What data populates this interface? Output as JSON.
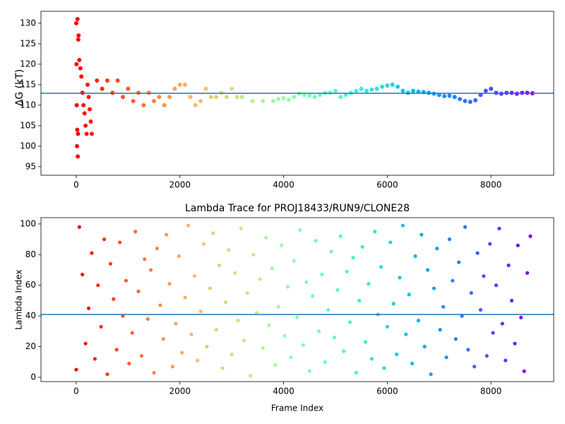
{
  "chart_data": [
    {
      "type": "scatter",
      "ylabel": "ΔG (kT)",
      "colormap": "rainbow",
      "colormap_reversed": true,
      "xlim": [
        -680,
        9210
      ],
      "ylim": [
        92.9,
        132.9
      ],
      "xticks": [
        0,
        2000,
        4000,
        6000,
        8000
      ],
      "yticks": [
        95,
        100,
        105,
        110,
        115,
        120,
        125,
        130
      ],
      "hline": 112.9,
      "hline_color": "#1f77b4",
      "x": [
        0,
        5,
        10,
        15,
        20,
        25,
        30,
        35,
        40,
        45,
        60,
        80,
        100,
        120,
        140,
        160,
        180,
        200,
        220,
        240,
        260,
        280,
        300,
        400,
        500,
        600,
        700,
        800,
        900,
        1000,
        1100,
        1200,
        1300,
        1400,
        1500,
        1600,
        1700,
        1800,
        1900,
        2000,
        2100,
        2200,
        2300,
        2400,
        2500,
        2600,
        2700,
        2800,
        2900,
        3000,
        3100,
        3200,
        3400,
        3600,
        3800,
        3900,
        4000,
        4100,
        4200,
        4300,
        4400,
        4500,
        4600,
        4700,
        4800,
        4900,
        5000,
        5100,
        5200,
        5300,
        5400,
        5500,
        5600,
        5700,
        5800,
        5900,
        6000,
        6100,
        6200,
        6300,
        6400,
        6500,
        6600,
        6700,
        6800,
        6900,
        7000,
        7100,
        7200,
        7300,
        7400,
        7500,
        7600,
        7700,
        7800,
        7900,
        8000,
        8100,
        8200,
        8300,
        8400,
        8500,
        8600,
        8700,
        8800
      ],
      "values": [
        130,
        120,
        110,
        100,
        104,
        131,
        97.5,
        103,
        126,
        127,
        121,
        119,
        117,
        113,
        110,
        108,
        105,
        103,
        115,
        112,
        109,
        106,
        103,
        116,
        114,
        116,
        113,
        116,
        112,
        114,
        111,
        113,
        110,
        113,
        111,
        112,
        110,
        112,
        114,
        115,
        115,
        112,
        110,
        111,
        114,
        112,
        112,
        113,
        112,
        114,
        112,
        112,
        111,
        111,
        111,
        111.5,
        111.7,
        111.3,
        112,
        112.8,
        112.5,
        112.3,
        112,
        112.5,
        113,
        113,
        113.5,
        112,
        112.5,
        113,
        113.5,
        114,
        113.5,
        113.8,
        114,
        114.5,
        114.8,
        115,
        114.5,
        113.5,
        113,
        113.5,
        113.3,
        113.2,
        113,
        112.8,
        112.5,
        112.2,
        112.3,
        112,
        111.5,
        111,
        110.8,
        111.2,
        112.5,
        113.5,
        114,
        113,
        112.8,
        113,
        113,
        112.8,
        113,
        113,
        112.9
      ]
    },
    {
      "type": "scatter",
      "title": "Lambda Trace for PROJ18433/RUN9/CLONE28",
      "xlabel": "Frame Index",
      "ylabel": "Lambda Index",
      "colormap": "rainbow",
      "colormap_reversed": true,
      "xlim": [
        -680,
        9210
      ],
      "ylim": [
        -2.8,
        104.1
      ],
      "xticks": [
        0,
        2000,
        4000,
        6000,
        8000
      ],
      "yticks": [
        0,
        20,
        40,
        60,
        80,
        100
      ],
      "hline": 41,
      "hline_color": "#1f77b4",
      "x": [
        0,
        60,
        120,
        180,
        240,
        300,
        360,
        420,
        480,
        540,
        600,
        660,
        720,
        780,
        840,
        900,
        960,
        1020,
        1080,
        1140,
        1200,
        1260,
        1320,
        1380,
        1440,
        1500,
        1560,
        1620,
        1680,
        1740,
        1800,
        1860,
        1920,
        1980,
        2040,
        2100,
        2160,
        2220,
        2280,
        2340,
        2400,
        2460,
        2520,
        2580,
        2640,
        2700,
        2760,
        2820,
        2880,
        2940,
        3000,
        3060,
        3120,
        3180,
        3240,
        3300,
        3360,
        3420,
        3480,
        3540,
        3600,
        3660,
        3720,
        3780,
        3840,
        3900,
        3960,
        4020,
        4080,
        4140,
        4200,
        4260,
        4320,
        4380,
        4440,
        4500,
        4560,
        4620,
        4680,
        4740,
        4800,
        4860,
        4920,
        4980,
        5040,
        5100,
        5160,
        5220,
        5280,
        5340,
        5400,
        5460,
        5520,
        5580,
        5640,
        5700,
        5760,
        5820,
        5880,
        5940,
        6000,
        6060,
        6120,
        6180,
        6240,
        6300,
        6360,
        6420,
        6480,
        6540,
        6600,
        6660,
        6720,
        6780,
        6840,
        6900,
        6960,
        7020,
        7080,
        7140,
        7200,
        7260,
        7320,
        7380,
        7440,
        7500,
        7560,
        7620,
        7680,
        7740,
        7800,
        7860,
        7920,
        7980,
        8040,
        8100,
        8160,
        8220,
        8280,
        8340,
        8400,
        8460,
        8520,
        8580,
        8640,
        8700,
        8760
      ],
      "values": [
        5,
        98,
        67,
        22,
        45,
        81,
        12,
        60,
        33,
        90,
        2,
        74,
        51,
        18,
        88,
        40,
        63,
        9,
        29,
        95,
        56,
        14,
        77,
        38,
        70,
        3,
        84,
        47,
        25,
        93,
        61,
        7,
        35,
        79,
        16,
        52,
        99,
        28,
        66,
        11,
        43,
        87,
        20,
        58,
        94,
        31,
        73,
        6,
        49,
        83,
        15,
        68,
        37,
        97,
        24,
        55,
        1,
        80,
        42,
        64,
        19,
        91,
        34,
        71,
        8,
        46,
        86,
        27,
        59,
        13,
        76,
        39,
        96,
        21,
        62,
        4,
        53,
        89,
        30,
        67,
        10,
        44,
        82,
        26,
        57,
        92,
        17,
        69,
        36,
        78,
        3,
        50,
        85,
        23,
        61,
        12,
        95,
        41,
        72,
        6,
        33,
        88,
        48,
        15,
        65,
        99,
        28,
        54,
        9,
        79,
        37,
        93,
        20,
        70,
        2,
        58,
        84,
        31,
        46,
        13,
        90,
        63,
        25,
        75,
        40,
        98,
        18,
        55,
        7,
        81,
        44,
        66,
        14,
        87,
        29,
        60,
        97,
        35,
        11,
        73,
        50,
        22,
        86,
        39,
        4,
        68,
        92
      ]
    }
  ]
}
